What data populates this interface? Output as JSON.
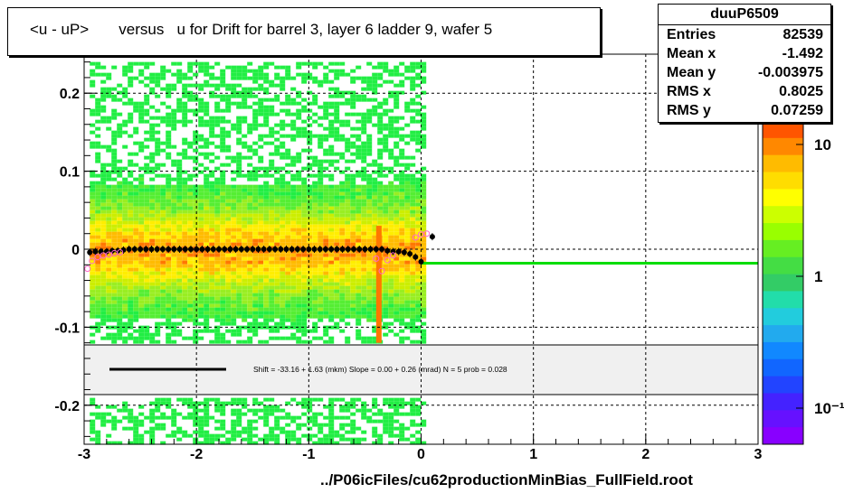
{
  "title": "<u - uP>       versus   u for Drift for barrel 3, layer 6 ladder 9, wafer 5",
  "stats": {
    "name": "duuP6509",
    "rows": [
      {
        "label": "Entries",
        "value": "82539"
      },
      {
        "label": "Mean x",
        "value": "-1.492"
      },
      {
        "label": "Mean y",
        "value": "-0.003975"
      },
      {
        "label": "RMS x",
        "value": "0.8025"
      },
      {
        "label": "RMS y",
        "value": "0.07259"
      }
    ]
  },
  "fit_text": "Shift =   -33.16 + 1.63 (mkm) Slope =     0.00 + 0.26 (mrad)  N = 5 prob = 0.028",
  "footer": "../P06icFiles/cu62productionMinBias_FullField.root",
  "colors": {
    "fit_line": "#00dd00",
    "profile_points": "#000000",
    "open_markers": "#ff66cc",
    "fit_band": "#f0f0f0"
  },
  "chart_data": {
    "type": "heatmap",
    "xlim": [
      -3,
      3
    ],
    "ylim": [
      -0.25,
      0.25
    ],
    "x_ticks": [
      "-3",
      "-2",
      "-1",
      "0",
      "1",
      "2",
      "3"
    ],
    "y_ticks": [
      "-0.2",
      "-0.1",
      "0",
      "0.1",
      "0.2"
    ],
    "grid": true,
    "colorbar": {
      "scale": "log",
      "ticks": [
        "10",
        "1",
        "10⁻¹"
      ]
    },
    "profile": {
      "x": [
        -2.95,
        -2.9,
        -2.85,
        -2.8,
        -2.75,
        -2.7,
        -2.65,
        -2.6,
        -2.55,
        -2.5,
        -2.45,
        -2.4,
        -2.35,
        -2.3,
        -2.25,
        -2.2,
        -2.15,
        -2.1,
        -2.05,
        -2.0,
        -1.95,
        -1.9,
        -1.85,
        -1.8,
        -1.75,
        -1.7,
        -1.65,
        -1.6,
        -1.55,
        -1.5,
        -1.45,
        -1.4,
        -1.35,
        -1.3,
        -1.25,
        -1.2,
        -1.15,
        -1.1,
        -1.05,
        -1.0,
        -0.95,
        -0.9,
        -0.85,
        -0.8,
        -0.75,
        -0.7,
        -0.65,
        -0.6,
        -0.55,
        -0.5,
        -0.45,
        -0.4,
        -0.35,
        -0.3,
        -0.25,
        -0.2,
        -0.15,
        -0.1,
        -0.05,
        0.0,
        0.1
      ],
      "y": [
        -0.004,
        -0.003,
        -0.003,
        -0.003,
        -0.002,
        -0.002,
        -0.001,
        0.0,
        0.0,
        0.0,
        0.0,
        0.0,
        0.0,
        0.0,
        0.0,
        0.0,
        0.0,
        0.0,
        0.0,
        0.0,
        0.0,
        0.0,
        0.0,
        0.0,
        0.0,
        0.0,
        0.0,
        0.0,
        0.0,
        0.0,
        0.0,
        0.0,
        0.0,
        0.0,
        0.0,
        0.0,
        0.0,
        0.0,
        0.0,
        0.0,
        0.0,
        0.0,
        0.0,
        0.0,
        0.0,
        0.0,
        0.0,
        0.0,
        0.0,
        0.0,
        0.0,
        0.0,
        0.0,
        -0.002,
        -0.003,
        -0.003,
        -0.004,
        -0.006,
        -0.01,
        -0.016,
        0.016
      ]
    },
    "open_markers": {
      "x": [
        -2.97,
        -2.93,
        -2.88,
        -2.83,
        -2.78,
        -2.73,
        -2.68,
        -0.4,
        -0.35,
        -0.3,
        -0.25,
        -0.05,
        0.0,
        0.05
      ],
      "y": [
        -0.025,
        -0.015,
        -0.01,
        -0.008,
        -0.007,
        -0.005,
        -0.004,
        -0.012,
        -0.028,
        -0.014,
        -0.008,
        0.015,
        0.019,
        0.02
      ]
    },
    "fit": {
      "x": [
        0.0,
        3.0
      ],
      "y": [
        -0.018,
        -0.018
      ]
    }
  }
}
